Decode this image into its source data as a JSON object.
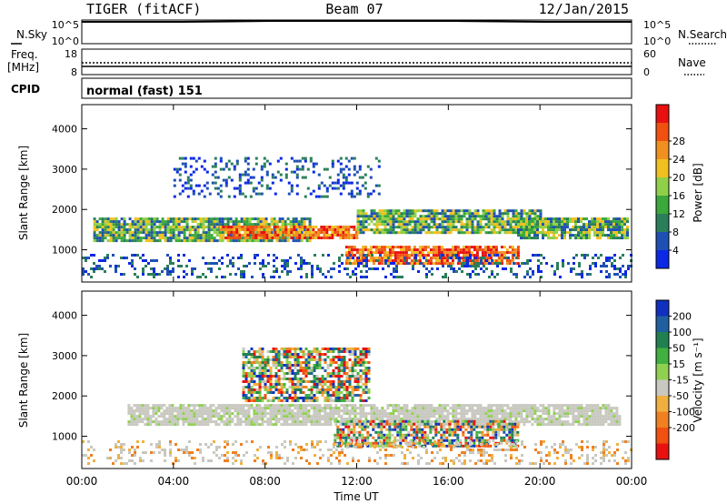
{
  "header": {
    "radar": "TIGER (fitACF)",
    "beam": "Beam 07",
    "date": "12/Jan/2015"
  },
  "top_panels": {
    "nsky_label": "N.Sky",
    "nsky_ticks": [
      "10^5",
      "10^0"
    ],
    "nsearch_label": "N.Search",
    "nsearch_ticks": [
      "10^5",
      "10^0"
    ],
    "freq_label": "Freq.",
    "freq_unit": "[MHz]",
    "freq_ticks": [
      "18",
      "8"
    ],
    "nave_label": "Nave",
    "nave_ticks": [
      "60",
      "0"
    ],
    "cpid_label": "CPID",
    "cpid_text": "normal (fast) 151"
  },
  "chart_data": [
    {
      "type": "heatmap",
      "name": "power",
      "ylabel": "Slant Range [km]",
      "xlabel": "",
      "x_ticks": [
        "00:00",
        "04:00",
        "08:00",
        "12:00",
        "16:00",
        "20:00",
        "00:00"
      ],
      "xlim_hours": [
        0,
        24
      ],
      "ylim": [
        200,
        4600
      ],
      "y_ticks": [
        1000,
        2000,
        3000,
        4000
      ],
      "colorbar_label": "Power [dB]",
      "colorbar_ticks": [
        "4",
        "8",
        "12",
        "16",
        "20",
        "24",
        "28"
      ],
      "colorbar_colors": [
        "#0a28e6",
        "#1e50b4",
        "#2a7f5a",
        "#3aa83a",
        "#8fd048",
        "#f0c020",
        "#f09020",
        "#f05010",
        "#e81010"
      ],
      "bands": [
        {
          "t0": 0.5,
          "t1": 10,
          "r0": 1200,
          "r1": 1800,
          "level": "mid"
        },
        {
          "t0": 6,
          "t1": 12,
          "r0": 1300,
          "r1": 1600,
          "level": "high"
        },
        {
          "t0": 11.5,
          "t1": 19,
          "r0": 650,
          "r1": 1100,
          "level": "high"
        },
        {
          "t0": 12,
          "t1": 20,
          "r0": 1400,
          "r1": 2000,
          "level": "mid"
        },
        {
          "t0": 19,
          "t1": 23.8,
          "r0": 1300,
          "r1": 1800,
          "level": "mid"
        },
        {
          "t0": 0,
          "t1": 24,
          "r0": 300,
          "r1": 900,
          "level": "low"
        },
        {
          "t0": 4,
          "t1": 13,
          "r0": 2300,
          "r1": 3300,
          "level": "low"
        }
      ]
    },
    {
      "type": "heatmap",
      "name": "velocity",
      "ylabel": "Slant Range [km]",
      "xlabel": "Time UT",
      "x_ticks": [
        "00:00",
        "04:00",
        "08:00",
        "12:00",
        "16:00",
        "20:00",
        "00:00"
      ],
      "xlim_hours": [
        0,
        24
      ],
      "ylim": [
        200,
        4600
      ],
      "y_ticks": [
        1000,
        2000,
        3000,
        4000
      ],
      "colorbar_label": "Velocity [m s⁻¹]",
      "colorbar_ticks": [
        "200",
        "100",
        "50",
        "15",
        "-15",
        "-50",
        "-100",
        "-200"
      ],
      "colorbar_colors": [
        "#1030c0",
        "#2060a0",
        "#208050",
        "#40b040",
        "#90d050",
        "#c8c8c0",
        "#f0b040",
        "#f08020",
        "#f05010",
        "#e81010"
      ],
      "bands": [
        {
          "t0": 2,
          "t1": 23.5,
          "r0": 1300,
          "r1": 1800,
          "level": "ground"
        },
        {
          "t0": 11,
          "t1": 19,
          "r0": 750,
          "r1": 1400,
          "level": "mixed"
        },
        {
          "t0": 0,
          "t1": 24,
          "r0": 300,
          "r1": 900,
          "level": "low"
        },
        {
          "t0": 7,
          "t1": 12.5,
          "r0": 1900,
          "r1": 3200,
          "level": "mixed"
        }
      ]
    }
  ]
}
